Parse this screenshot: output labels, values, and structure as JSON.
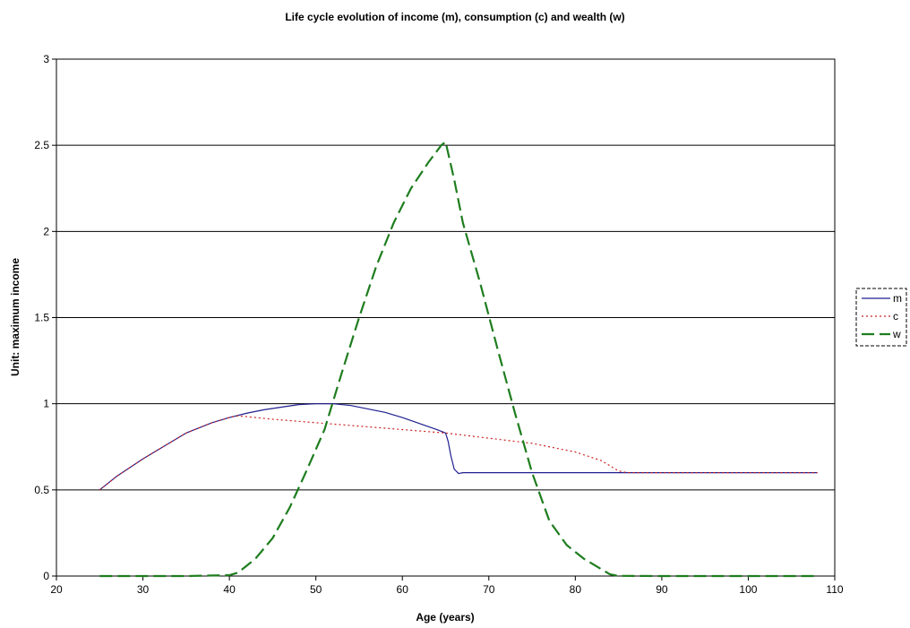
{
  "chart_data": {
    "type": "line",
    "title": "Life cycle evolution of income (m), consumption (c) and wealth (w)",
    "xlabel": "Age (years)",
    "ylabel": "Unit: maximum income",
    "xlim": [
      20,
      110
    ],
    "ylim": [
      0,
      3
    ],
    "xticks": [
      "20",
      "30",
      "40",
      "50",
      "60",
      "70",
      "80",
      "90",
      "100",
      "110"
    ],
    "yticks": [
      "0",
      "0.5",
      "1",
      "1.5",
      "2",
      "2.5",
      "3"
    ],
    "grid": "horizontal",
    "legend_position": "right",
    "series": [
      {
        "name": "m",
        "color": "#1f1f8f",
        "style": "solid",
        "points": [
          [
            25,
            0.5
          ],
          [
            27,
            0.58
          ],
          [
            30,
            0.68
          ],
          [
            33,
            0.77
          ],
          [
            35,
            0.83
          ],
          [
            38,
            0.89
          ],
          [
            40,
            0.92
          ],
          [
            42,
            0.945
          ],
          [
            44,
            0.965
          ],
          [
            46,
            0.98
          ],
          [
            48,
            0.995
          ],
          [
            50,
            1.0
          ],
          [
            52,
            1.0
          ],
          [
            54,
            0.99
          ],
          [
            56,
            0.97
          ],
          [
            58,
            0.95
          ],
          [
            60,
            0.92
          ],
          [
            62,
            0.885
          ],
          [
            64,
            0.85
          ],
          [
            65,
            0.83
          ],
          [
            65.3,
            0.78
          ],
          [
            65.6,
            0.7
          ],
          [
            66,
            0.62
          ],
          [
            66.5,
            0.595
          ],
          [
            67,
            0.6
          ],
          [
            70,
            0.6
          ],
          [
            80,
            0.6
          ],
          [
            90,
            0.6
          ],
          [
            100,
            0.6
          ],
          [
            108,
            0.6
          ]
        ]
      },
      {
        "name": "c",
        "color": "#cc2222",
        "style": "dotted",
        "points": [
          [
            25,
            0.5
          ],
          [
            27,
            0.58
          ],
          [
            30,
            0.68
          ],
          [
            33,
            0.77
          ],
          [
            35,
            0.83
          ],
          [
            38,
            0.89
          ],
          [
            40,
            0.92
          ],
          [
            41,
            0.93
          ],
          [
            45,
            0.91
          ],
          [
            50,
            0.89
          ],
          [
            55,
            0.87
          ],
          [
            60,
            0.85
          ],
          [
            65,
            0.83
          ],
          [
            70,
            0.8
          ],
          [
            75,
            0.77
          ],
          [
            80,
            0.72
          ],
          [
            83,
            0.67
          ],
          [
            85,
            0.61
          ],
          [
            86,
            0.6
          ],
          [
            90,
            0.6
          ],
          [
            100,
            0.6
          ],
          [
            108,
            0.6
          ]
        ]
      },
      {
        "name": "w",
        "color": "#1e7d1e",
        "style": "dashed",
        "points": [
          [
            25,
            0
          ],
          [
            30,
            0
          ],
          [
            35,
            0
          ],
          [
            40,
            0.005
          ],
          [
            41,
            0.02
          ],
          [
            42,
            0.06
          ],
          [
            43,
            0.1
          ],
          [
            45,
            0.22
          ],
          [
            47,
            0.4
          ],
          [
            49,
            0.62
          ],
          [
            51,
            0.85
          ],
          [
            53,
            1.18
          ],
          [
            55,
            1.5
          ],
          [
            57,
            1.8
          ],
          [
            59,
            2.05
          ],
          [
            61,
            2.25
          ],
          [
            63,
            2.4
          ],
          [
            64.5,
            2.5
          ],
          [
            65,
            2.52
          ],
          [
            66,
            2.3
          ],
          [
            67,
            2.05
          ],
          [
            69,
            1.7
          ],
          [
            71,
            1.32
          ],
          [
            73,
            0.95
          ],
          [
            75,
            0.6
          ],
          [
            77,
            0.32
          ],
          [
            79,
            0.18
          ],
          [
            81,
            0.1
          ],
          [
            83,
            0.04
          ],
          [
            84,
            0.01
          ],
          [
            85,
            0.001
          ],
          [
            90,
            0
          ],
          [
            100,
            0
          ],
          [
            108,
            0
          ]
        ]
      }
    ]
  }
}
